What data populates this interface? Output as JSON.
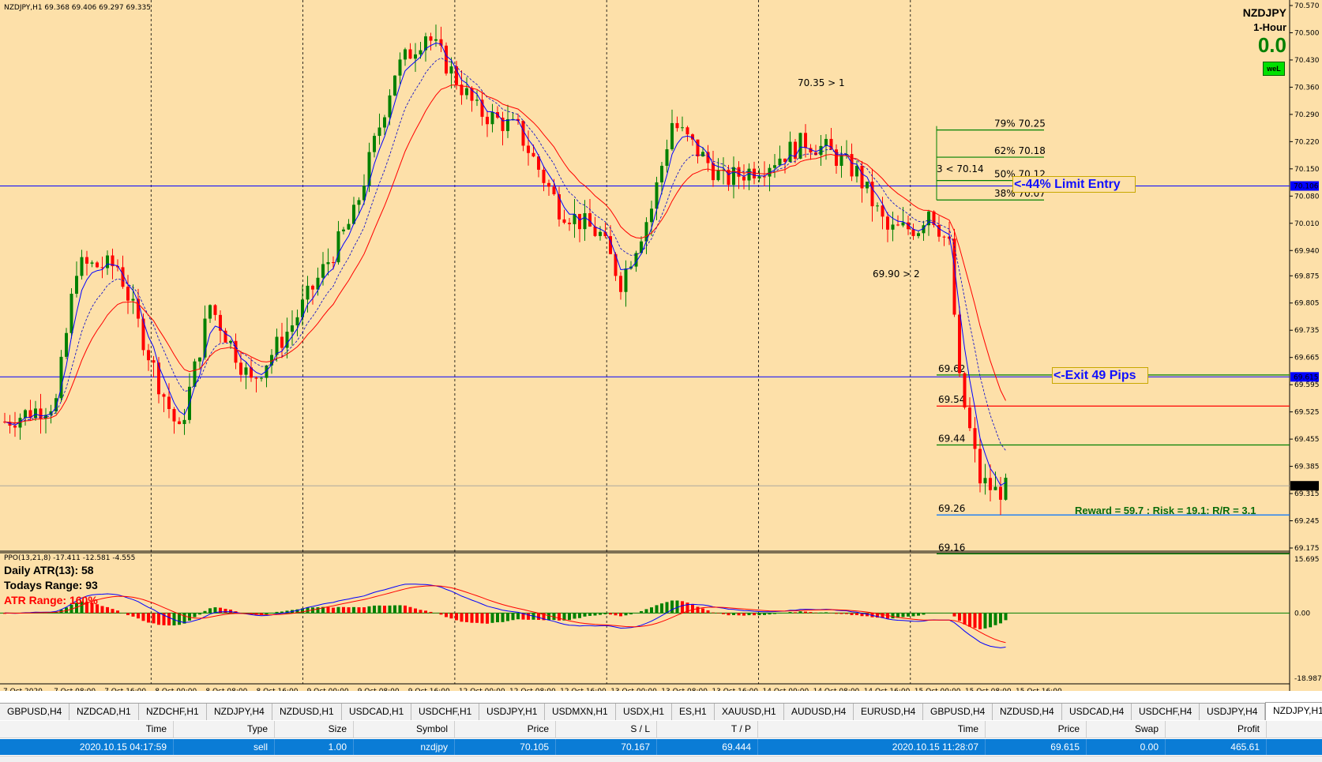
{
  "chart": {
    "header": "NZDJPY,H1  69.368 69.406 69.297 69.335",
    "symbol": "NZDJPY",
    "timeframe": "1-Hour",
    "big_value": "0.0",
    "badge": "weL",
    "fib_levels": [
      "79% 70.25",
      "62% 70.18",
      "50% 70.12",
      "38% 70.07"
    ],
    "fib_note": "3 < 70.14",
    "entry_label": "<-44% Limit Entry",
    "exit_label": "<-Exit 49 Pips",
    "level_labels": [
      "69.62",
      "69.54",
      "69.44",
      "69.26",
      "69.16"
    ],
    "annotations": [
      "70.35 > 1",
      "69.90 > 2"
    ],
    "reward_text": "Reward = 59.7 : Risk = 19.1: R/R = 3.1",
    "price_axis": [
      "70.570",
      "70.500",
      "70.430",
      "70.360",
      "70.290",
      "70.220",
      "70.150",
      "70.080",
      "70.010",
      "69.940",
      "69.875",
      "69.805",
      "69.735",
      "69.665",
      "69.595",
      "69.525",
      "69.455",
      "69.385",
      "69.315",
      "69.245",
      "69.175"
    ],
    "price_markers": {
      "entry": "70.106",
      "exit": "69.615",
      "current": "69.335"
    },
    "indicator_axis": [
      "15.695",
      "0.00",
      "-18.987"
    ],
    "time_axis": [
      "7 Oct 2020",
      "7 Oct 08:00",
      "7 Oct 16:00",
      "8 Oct 00:00",
      "8 Oct 08:00",
      "8 Oct 16:00",
      "9 Oct 00:00",
      "9 Oct 08:00",
      "9 Oct 16:00",
      "12 Oct 00:00",
      "12 Oct 08:00",
      "12 Oct 16:00",
      "13 Oct 00:00",
      "13 Oct 08:00",
      "13 Oct 16:00",
      "14 Oct 00:00",
      "14 Oct 08:00",
      "14 Oct 16:00",
      "15 Oct 00:00",
      "15 Oct 08:00",
      "15 Oct 16:00"
    ],
    "ppo_label": "PPO(13,21,8) -17.411 -12.581 -4.555",
    "daily_atr": "Daily ATR(13): 58",
    "todays_range": "Todays Range: 93",
    "atr_range": "ATR Range: 160%"
  },
  "tabs": [
    "GBPUSD,H4",
    "NZDCAD,H1",
    "NZDCHF,H1",
    "NZDJPY,H4",
    "NZDUSD,H1",
    "USDCAD,H1",
    "USDCHF,H1",
    "USDJPY,H1",
    "USDMXN,H1",
    "USDX,H1",
    "ES,H1",
    "XAUUSD,H1",
    "AUDUSD,H4",
    "EURUSD,H4",
    "GBPUSD,H4",
    "NZDUSD,H4",
    "USDCAD,H4",
    "USDCHF,H4",
    "USDJPY,H4",
    "NZDJPY,H1"
  ],
  "active_tab": "NZDJPY,H1",
  "table": {
    "headers": [
      "Time",
      "Type",
      "Size",
      "Symbol",
      "Price",
      "S / L",
      "T / P",
      "Time",
      "Price",
      "Swap",
      "Profit"
    ],
    "row": [
      "2020.10.15 04:17:59",
      "sell",
      "1.00",
      "nzdjpy",
      "70.105",
      "70.167",
      "69.444",
      "2020.10.15 11:28:07",
      "69.615",
      "0.00",
      "465.61"
    ]
  },
  "colors": {
    "background": "#fde0a9",
    "bull": "#008000",
    "bear": "#ff0000",
    "blue_line": "#0000ff",
    "selection": "#0a7cd6"
  }
}
